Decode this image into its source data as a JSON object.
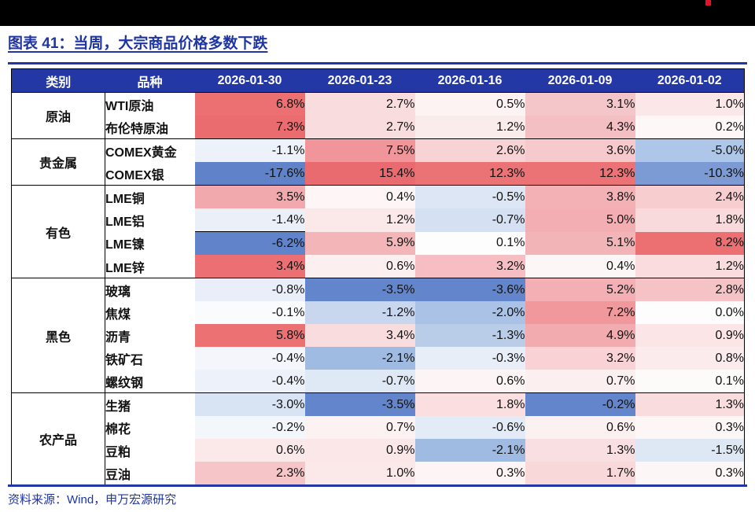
{
  "header": {
    "title": "图表 41：当周，大宗商品价格多数下跌"
  },
  "footer": {
    "source": "资料来源：Wind，申万宏源研究"
  },
  "theme": {
    "topbar_color": "#000000",
    "logo_mark_color": "#E8112D",
    "title_color": "#1F35A3",
    "rule_color": "#2236A5",
    "header_bg": "#2337A5",
    "positive_color": "#EA6B6F",
    "negative_color": "#5F82C9"
  },
  "chart_data": {
    "type": "table",
    "title": "图表 41：当周，大宗商品价格多数下跌",
    "unit": "%",
    "legend": "red shading = price increase, blue shading = price decrease",
    "col_headers": [
      "类别",
      "品种",
      "2026-01-30",
      "2026-01-23",
      "2026-01-16",
      "2026-01-09",
      "2026-01-02"
    ],
    "groups": [
      {
        "category": "原油",
        "rows": [
          {
            "name": "WTI原油",
            "values": [
              6.8,
              2.7,
              0.5,
              3.1,
              1.0
            ],
            "cell_colors": [
              "#EC6F71",
              "#F8DCDE",
              "#FDF3F3",
              "#F5C6C9",
              "#FBE7E7"
            ]
          },
          {
            "name": "布伦特原油",
            "values": [
              7.3,
              2.7,
              1.2,
              4.3,
              0.2
            ],
            "cell_colors": [
              "#EB6C6F",
              "#F8DCDE",
              "#FBECEC",
              "#F4BFC3",
              "#FDF7F7"
            ]
          }
        ]
      },
      {
        "category": "贵金属",
        "rows": [
          {
            "name": "COMEX黄金",
            "values": [
              -1.1,
              7.5,
              2.6,
              3.6,
              -5.0
            ],
            "cell_colors": [
              "#EDF1F9",
              "#F0959A",
              "#F8D3D6",
              "#F6CACD",
              "#AEC6E7"
            ]
          },
          {
            "name": "COMEX银",
            "values": [
              -17.6,
              15.4,
              12.3,
              12.3,
              -10.3
            ],
            "cell_colors": [
              "#5F82C9",
              "#EA6B6F",
              "#EB7275",
              "#EB7275",
              "#7C9BD5"
            ]
          }
        ]
      },
      {
        "category": "有色",
        "rows": [
          {
            "name": "LME铜",
            "values": [
              3.5,
              0.4,
              -0.5,
              3.8,
              2.4
            ],
            "cell_colors": [
              "#F2A9AD",
              "#FEF6F6",
              "#DCE6F4",
              "#F3B1B5",
              "#F7CDD0"
            ]
          },
          {
            "name": "LME铝",
            "values": [
              -1.4,
              1.2,
              -0.7,
              5.0,
              1.8
            ],
            "cell_colors": [
              "#EBF0F8",
              "#FBE9EA",
              "#D5E1F2",
              "#F2AEB2",
              "#F9DADC"
            ]
          },
          {
            "name": "LME镍",
            "values": [
              -6.2,
              5.9,
              0.1,
              5.1,
              8.2
            ],
            "cell_colors": [
              "#6083CA",
              "#F4B5B8",
              "#FEFDFD",
              "#F3B4B7",
              "#EC6F71"
            ],
            "top_border_first_cell": true
          },
          {
            "name": "LME锌",
            "values": [
              3.4,
              0.6,
              3.2,
              0.4,
              1.2
            ],
            "cell_colors": [
              "#EC6F73",
              "#FCEFF0",
              "#F6BEC2",
              "#FDF6F7",
              "#FADCDE"
            ]
          }
        ]
      },
      {
        "category": "黑色",
        "rows": [
          {
            "name": "玻璃",
            "values": [
              -0.8,
              -3.5,
              -3.6,
              5.2,
              2.8
            ],
            "cell_colors": [
              "#E9EEF8",
              "#6285CB",
              "#6285CB",
              "#F3AFB3",
              "#F5C3C6"
            ]
          },
          {
            "name": "焦煤",
            "values": [
              -0.1,
              -1.2,
              -2.0,
              7.2,
              0.0
            ],
            "cell_colors": [
              "#FAFBFD",
              "#C8D7EE",
              "#A9C2E5",
              "#F0989C",
              "#FDFDFE"
            ]
          },
          {
            "name": "沥青",
            "values": [
              5.8,
              3.4,
              -1.3,
              4.9,
              0.9
            ],
            "cell_colors": [
              "#EC7173",
              "#F9DCDE",
              "#B9CDE9",
              "#F2ACB0",
              "#FBE5E6"
            ]
          },
          {
            "name": "铁矿石",
            "values": [
              -0.4,
              -2.1,
              -0.3,
              3.2,
              0.8
            ],
            "cell_colors": [
              "#F4F6FB",
              "#9FBBE2",
              "#E8EEF7",
              "#F8D2D5",
              "#FCEBEC"
            ]
          },
          {
            "name": "螺纹钢",
            "values": [
              -0.4,
              -0.7,
              0.6,
              0.7,
              0.1
            ],
            "cell_colors": [
              "#EDF1F9",
              "#DFE8F5",
              "#FDF5F5",
              "#FCEFEF",
              "#FDFAFA"
            ]
          }
        ]
      },
      {
        "category": "农产品",
        "rows": [
          {
            "name": "生猪",
            "values": [
              -3.0,
              -3.5,
              1.8,
              -0.2,
              1.3
            ],
            "cell_colors": [
              "#D8E3F3",
              "#6285CB",
              "#FADEE0",
              "#6285CB",
              "#F9DCDE"
            ]
          },
          {
            "name": "棉花",
            "values": [
              -0.2,
              0.7,
              -0.6,
              0.6,
              0.3
            ],
            "cell_colors": [
              "#F3F6FA",
              "#FDF2F2",
              "#E3EBF6",
              "#FCF1F1",
              "#FDF6F6"
            ]
          },
          {
            "name": "豆粕",
            "values": [
              0.6,
              0.9,
              -2.1,
              1.3,
              -1.5
            ],
            "cell_colors": [
              "#FBE9EA",
              "#FBE7E8",
              "#9FBBE2",
              "#F9DFE1",
              "#DEE8F5"
            ]
          },
          {
            "name": "豆油",
            "values": [
              2.3,
              1.0,
              0.3,
              1.7,
              0.3
            ],
            "cell_colors": [
              "#F6C5C8",
              "#FBE9EA",
              "#FDF5F5",
              "#F9D8DA",
              "#FDF6F6"
            ]
          }
        ]
      }
    ]
  }
}
